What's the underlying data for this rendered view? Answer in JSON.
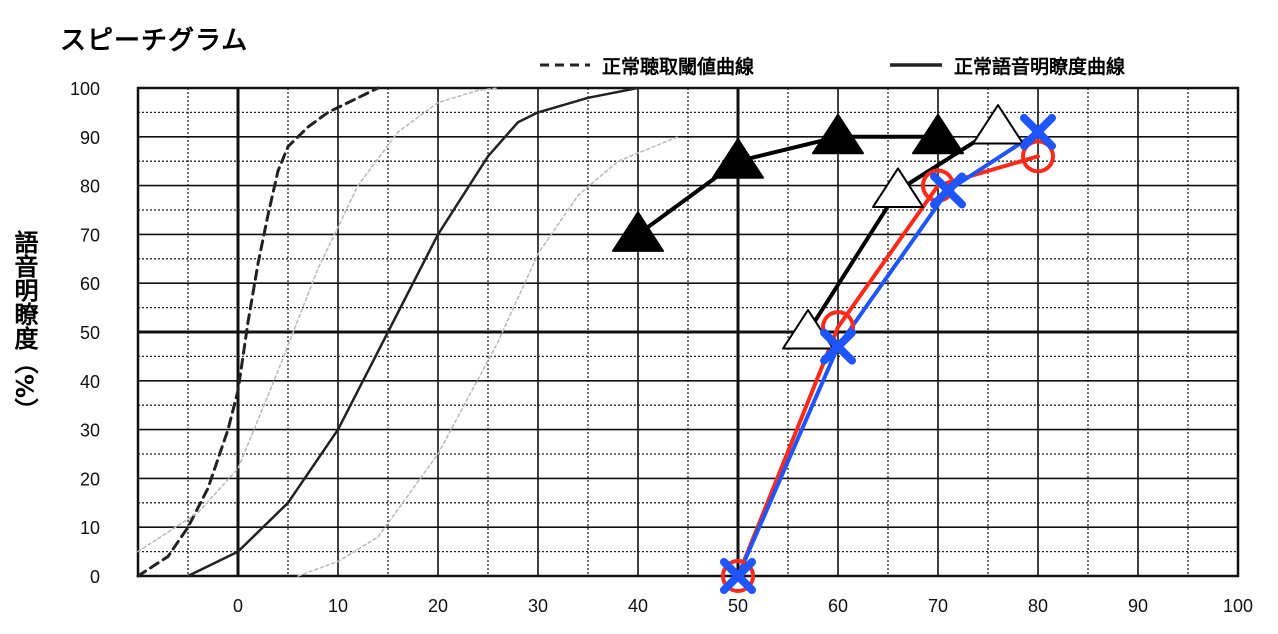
{
  "chart_data": {
    "type": "line",
    "title": "スピーチグラム",
    "xlabel": "",
    "ylabel": "語音明瞭度（%）",
    "xlim": [
      -10,
      100
    ],
    "ylim": [
      0,
      100
    ],
    "x_ticks": [
      0,
      10,
      20,
      30,
      40,
      50,
      60,
      70,
      80,
      90,
      100
    ],
    "y_ticks": [
      0,
      10,
      20,
      30,
      40,
      50,
      60,
      70,
      80,
      90,
      100
    ],
    "grid": "on",
    "legend_position": "top-right",
    "legend": [
      {
        "label": "正常聴取閾値曲線",
        "style": "dashed"
      },
      {
        "label": "正常語音明瞭度曲線",
        "style": "solid"
      }
    ],
    "series": [
      {
        "style": "dashed",
        "color": "#222222",
        "width": 3,
        "x": [
          -10,
          -7,
          -5,
          -3,
          -1,
          0,
          1,
          2,
          3,
          4,
          5,
          7,
          9,
          12,
          14
        ],
        "y": [
          0,
          4,
          10,
          18,
          30,
          38,
          52,
          64,
          74,
          83,
          88,
          92,
          95,
          98,
          100
        ]
      },
      {
        "style": "solid",
        "color": "#222222",
        "width": 2.5,
        "x": [
          -5,
          0,
          5,
          10,
          15,
          20,
          25,
          28,
          30,
          35,
          40
        ],
        "y": [
          0,
          5,
          15,
          30,
          50,
          70,
          86,
          93,
          95,
          98,
          100
        ]
      },
      {
        "style": "dotted",
        "color": "#bbbbbb",
        "width": 1.6,
        "x": [
          -10,
          -4,
          0,
          4,
          8,
          12,
          16,
          20,
          24,
          26
        ],
        "y": [
          5,
          13,
          22,
          42,
          63,
          80,
          91,
          97,
          99.5,
          100
        ]
      },
      {
        "style": "dotted",
        "color": "#bbbbbb",
        "width": 1.6,
        "x": [
          6,
          10,
          14,
          20,
          26,
          30,
          34,
          38,
          44
        ],
        "y": [
          0,
          3,
          8,
          25,
          48,
          66,
          78,
          85,
          90
        ]
      },
      {
        "marker": "filled-triangle",
        "color": "#000000",
        "width": 4,
        "x": [
          40,
          50,
          60,
          70
        ],
        "y": [
          70,
          85,
          90,
          90
        ]
      },
      {
        "marker": "open-triangle",
        "color": "#000000",
        "width": 4,
        "x": [
          57,
          66,
          76
        ],
        "y": [
          50,
          79,
          92
        ]
      },
      {
        "marker": "circle",
        "color": "#ff2a1a",
        "width": 4,
        "x": [
          50,
          60,
          70,
          80
        ],
        "y": [
          0,
          51,
          80,
          86
        ]
      },
      {
        "marker": "cross",
        "color": "#1f55ff",
        "width": 4,
        "x": [
          50,
          60,
          71,
          80
        ],
        "y": [
          0,
          47,
          79,
          91
        ]
      }
    ]
  }
}
